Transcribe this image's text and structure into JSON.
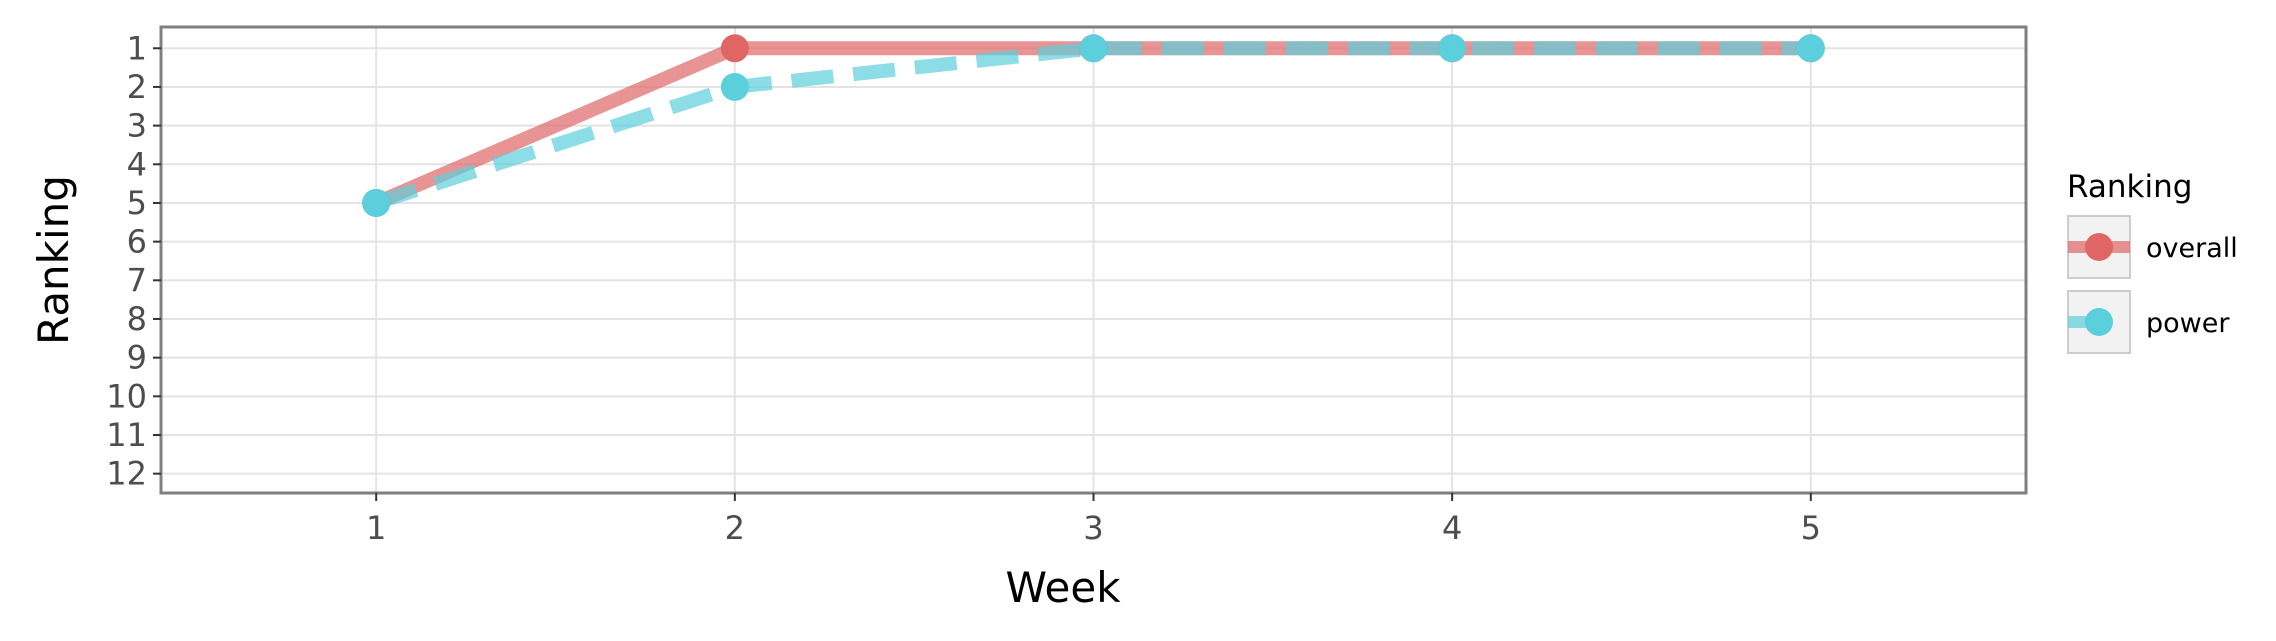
{
  "chart_data": {
    "type": "line",
    "title": "",
    "xlabel": "Week",
    "ylabel": "Ranking",
    "x": [
      1,
      2,
      3,
      4,
      5
    ],
    "xlim": [
      0.4,
      5.6
    ],
    "ylim": [
      12.5,
      0.45
    ],
    "y_reversed": true,
    "x_ticks": [
      1,
      2,
      3,
      4,
      5
    ],
    "y_ticks": [
      1,
      2,
      3,
      4,
      5,
      6,
      7,
      8,
      9,
      10,
      11,
      12
    ],
    "grid": true,
    "legend": {
      "title": "Ranking",
      "position": "right"
    },
    "series": [
      {
        "name": "overall",
        "values": [
          5,
          1,
          1,
          1,
          1
        ],
        "color": "#E06666",
        "line_style": "solid"
      },
      {
        "name": "power",
        "values": [
          5,
          2,
          1,
          1,
          1
        ],
        "color": "#5BCFDB",
        "line_style": "dashed"
      }
    ]
  }
}
